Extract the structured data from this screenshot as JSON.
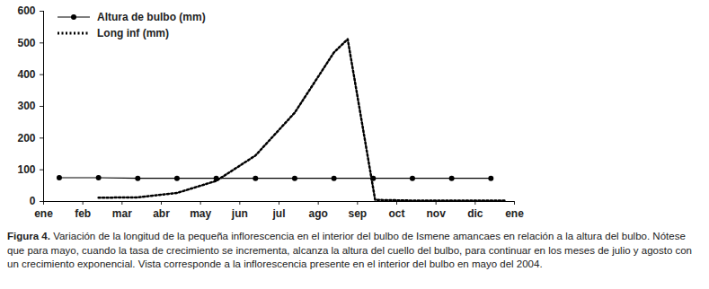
{
  "chart_data": {
    "type": "line",
    "caption": "Figura 4. Variación de la longitud de la pequeña inflorescencia en el interior del bulbo de Ismene amancaes en relación a la altura del bulbo. Nótese que para mayo, cuando la tasa de crecimiento se incrementa, alcanza la altura del cuello del bulbo, para continuar en los meses de julio y agosto con un crecimiento exponencial. Vista corresponde a la inflorescencia presente en el interior del bulbo en mayo del 2004.",
    "xlim": [
      0,
      12
    ],
    "xticks": [
      {
        "value": 0,
        "label": "ene"
      },
      {
        "value": 1,
        "label": "feb"
      },
      {
        "value": 2,
        "label": "mar"
      },
      {
        "value": 3,
        "label": "abr"
      },
      {
        "value": 4,
        "label": "may"
      },
      {
        "value": 5,
        "label": "jun"
      },
      {
        "value": 6,
        "label": "jul"
      },
      {
        "value": 7,
        "label": "ago"
      },
      {
        "value": 8,
        "label": "sep"
      },
      {
        "value": 9,
        "label": "oct"
      },
      {
        "value": 10,
        "label": "nov"
      },
      {
        "value": 11,
        "label": "dic"
      },
      {
        "value": 12,
        "label": "ene"
      }
    ],
    "ylim": [
      0,
      600
    ],
    "yticks": [
      0,
      100,
      200,
      300,
      400,
      500,
      600
    ],
    "grid": false,
    "legend": "top-left",
    "series": [
      {
        "name": "Altura de bulbo (mm)",
        "color": "#000000",
        "marker": "circle",
        "line_style": "solid",
        "x": [
          0.4,
          1.4,
          2.4,
          3.4,
          4.4,
          5.4,
          6.4,
          7.4,
          8.4,
          9.4,
          10.4,
          11.4
        ],
        "values": [
          75,
          75,
          73,
          73,
          73,
          73,
          73,
          73,
          73,
          73,
          73,
          73
        ]
      },
      {
        "name": "Long inf (mm)",
        "color": "#000000",
        "marker": "none",
        "line_style": "dotted",
        "x": [
          1.4,
          2.4,
          3.4,
          4.4,
          5.4,
          6.4,
          7.4,
          7.75,
          8.45,
          9.4,
          10.4,
          11.4,
          11.8
        ],
        "values": [
          12,
          13,
          27,
          65,
          145,
          280,
          470,
          512,
          5,
          3,
          3,
          3,
          3
        ]
      }
    ]
  }
}
